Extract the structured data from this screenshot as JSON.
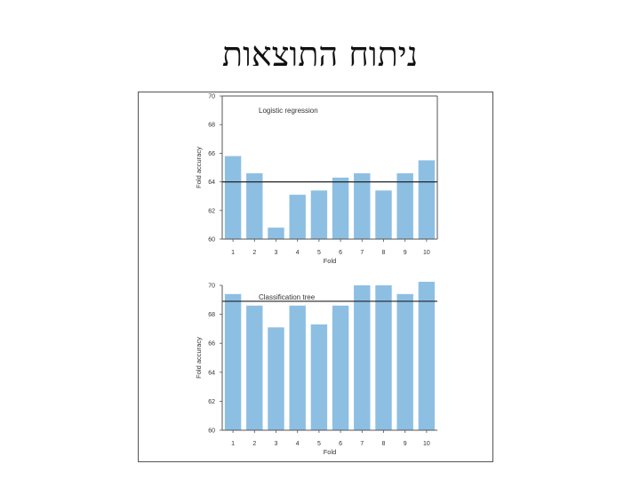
{
  "slide": {
    "title": "ניתוח התוצאות"
  },
  "colors": {
    "bar": "#8dbfe3",
    "reference_line": "#222222",
    "axis": "#555555"
  },
  "chart_data": [
    {
      "type": "bar",
      "title": "Logistic regression",
      "categories": [
        "1",
        "2",
        "3",
        "4",
        "5",
        "6",
        "7",
        "8",
        "9",
        "10"
      ],
      "values": [
        65.8,
        64.6,
        60.8,
        63.1,
        63.4,
        64.3,
        64.6,
        63.4,
        64.6,
        65.5
      ],
      "reference_line": 64.0,
      "xlabel": "Fold",
      "ylabel": "Fold accuracy",
      "ylim": [
        60,
        70
      ],
      "yticks": [
        "60",
        "62",
        "64",
        "66",
        "68",
        "70"
      ],
      "grid": false
    },
    {
      "type": "bar",
      "title": "Classification tree",
      "categories": [
        "1",
        "2",
        "3",
        "4",
        "5",
        "6",
        "7",
        "8",
        "9",
        "10"
      ],
      "values": [
        69.4,
        68.6,
        67.1,
        68.6,
        67.3,
        68.6,
        70.0,
        70.0,
        69.4,
        70.5
      ],
      "reference_line": 68.9,
      "xlabel": "Fold",
      "ylabel": "Fold accuracy",
      "ylim": [
        60,
        70
      ],
      "yticks": [
        "60",
        "62",
        "64",
        "66",
        "68",
        "70"
      ],
      "grid": false
    }
  ]
}
